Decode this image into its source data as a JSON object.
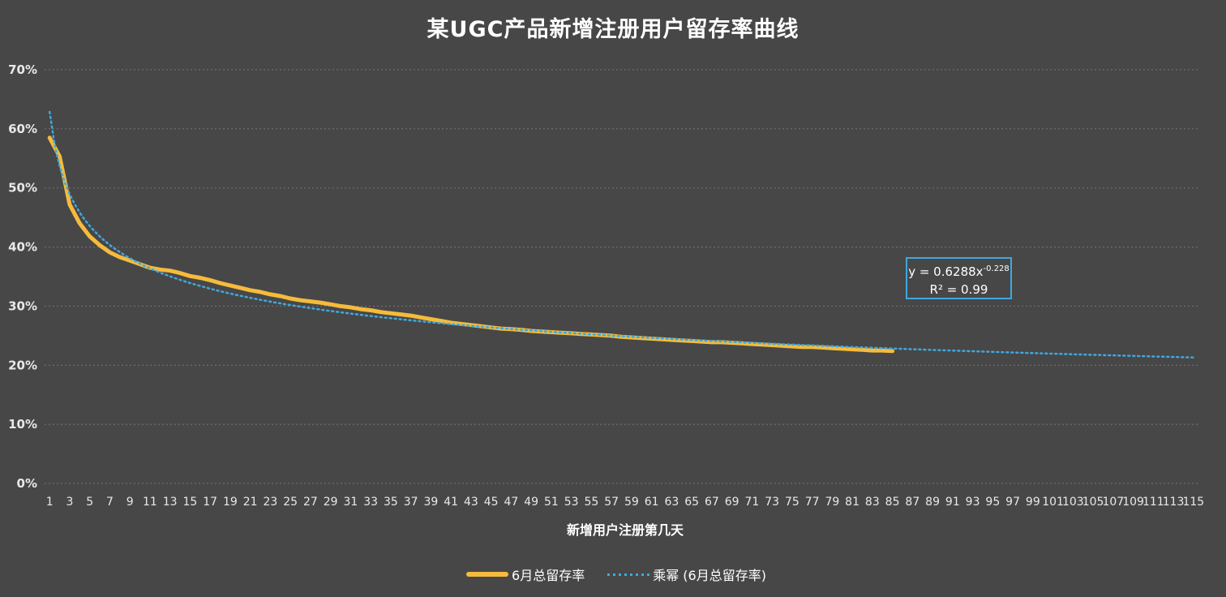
{
  "chart_data": {
    "type": "line",
    "title": "某UGC产品新增注册用户留存率曲线",
    "xlabel": "新增用户注册第几天",
    "ylabel": "",
    "ylim": [
      0,
      0.7
    ],
    "yticks": [
      "0%",
      "10%",
      "20%",
      "30%",
      "40%",
      "50%",
      "60%",
      "70%"
    ],
    "xticks": [
      "1",
      "3",
      "5",
      "7",
      "9",
      "11",
      "13",
      "15",
      "17",
      "19",
      "21",
      "23",
      "25",
      "27",
      "29",
      "31",
      "33",
      "35",
      "37",
      "39",
      "41",
      "43",
      "45",
      "47",
      "49",
      "51",
      "53",
      "55",
      "57",
      "59",
      "61",
      "63",
      "65",
      "67",
      "69",
      "71",
      "73",
      "75",
      "77",
      "79",
      "81",
      "83",
      "85",
      "87",
      "89",
      "91",
      "93",
      "95",
      "97",
      "99",
      "101",
      "103",
      "105",
      "107",
      "109",
      "111",
      "113",
      "115"
    ],
    "grid": "horizontal",
    "legend_position": "bottom",
    "series": [
      {
        "name": "6月总留存率",
        "color": "#f5bb3c",
        "style": "solid",
        "x": [
          1,
          2,
          3,
          4,
          5,
          6,
          7,
          8,
          9,
          10,
          11,
          12,
          13,
          14,
          15,
          16,
          17,
          18,
          19,
          20,
          21,
          22,
          23,
          24,
          25,
          26,
          27,
          28,
          29,
          30,
          31,
          32,
          33,
          34,
          35,
          36,
          37,
          38,
          39,
          40,
          41,
          42,
          43,
          44,
          45,
          46,
          47,
          48,
          49,
          50,
          51,
          52,
          53,
          54,
          55,
          56,
          57,
          58,
          59,
          60,
          61,
          62,
          63,
          64,
          65,
          66,
          67,
          68,
          69,
          70,
          71,
          72,
          73,
          74,
          75,
          76,
          77,
          78,
          79,
          80,
          81,
          82,
          83,
          84,
          85
        ],
        "values": [
          0.585,
          0.553,
          0.472,
          0.44,
          0.418,
          0.403,
          0.391,
          0.383,
          0.377,
          0.371,
          0.365,
          0.362,
          0.36,
          0.356,
          0.351,
          0.348,
          0.344,
          0.339,
          0.335,
          0.331,
          0.327,
          0.324,
          0.32,
          0.317,
          0.313,
          0.31,
          0.308,
          0.306,
          0.303,
          0.3,
          0.298,
          0.295,
          0.293,
          0.29,
          0.288,
          0.286,
          0.284,
          0.281,
          0.278,
          0.275,
          0.272,
          0.27,
          0.268,
          0.266,
          0.264,
          0.262,
          0.261,
          0.26,
          0.258,
          0.257,
          0.256,
          0.255,
          0.254,
          0.253,
          0.252,
          0.251,
          0.25,
          0.248,
          0.247,
          0.246,
          0.245,
          0.244,
          0.243,
          0.242,
          0.241,
          0.24,
          0.239,
          0.239,
          0.238,
          0.237,
          0.236,
          0.235,
          0.234,
          0.233,
          0.232,
          0.231,
          0.231,
          0.23,
          0.229,
          0.228,
          0.227,
          0.226,
          0.225,
          0.225,
          0.224
        ]
      },
      {
        "name": "乘幂 (6月总留存率)",
        "color": "#3fa8e0",
        "style": "dotted",
        "trend": "power",
        "coef_a": 0.6288,
        "coef_b": -0.228,
        "x_start": 1,
        "x_end": 115
      }
    ],
    "equation": {
      "line1_prefix": "y = 0.6288x",
      "line1_exp": "-0.228",
      "line2": "R² = 0.99"
    }
  }
}
